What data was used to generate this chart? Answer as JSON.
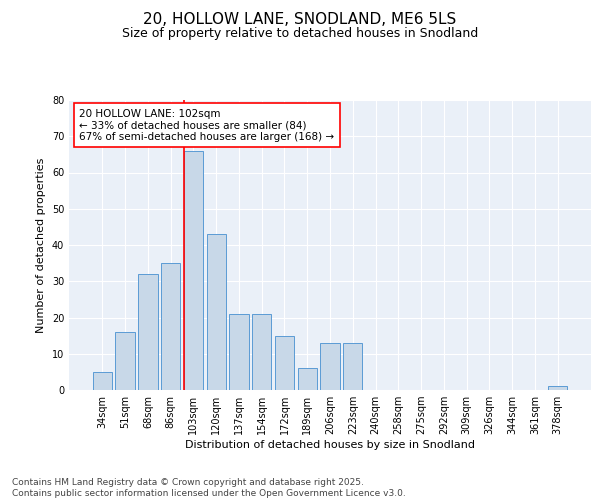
{
  "title1": "20, HOLLOW LANE, SNODLAND, ME6 5LS",
  "title2": "Size of property relative to detached houses in Snodland",
  "xlabel": "Distribution of detached houses by size in Snodland",
  "ylabel": "Number of detached properties",
  "categories": [
    "34sqm",
    "51sqm",
    "68sqm",
    "86sqm",
    "103sqm",
    "120sqm",
    "137sqm",
    "154sqm",
    "172sqm",
    "189sqm",
    "206sqm",
    "223sqm",
    "240sqm",
    "258sqm",
    "275sqm",
    "292sqm",
    "309sqm",
    "326sqm",
    "344sqm",
    "361sqm",
    "378sqm"
  ],
  "values": [
    5,
    16,
    32,
    35,
    66,
    43,
    21,
    21,
    15,
    6,
    13,
    13,
    0,
    0,
    0,
    0,
    0,
    0,
    0,
    0,
    1
  ],
  "bar_color": "#c8d8e8",
  "bar_edge_color": "#5b9bd5",
  "red_line_index": 4,
  "annotation_text": "20 HOLLOW LANE: 102sqm\n← 33% of detached houses are smaller (84)\n67% of semi-detached houses are larger (168) →",
  "annotation_box_color": "white",
  "annotation_box_edge_color": "red",
  "red_line_color": "red",
  "ylim": [
    0,
    80
  ],
  "yticks": [
    0,
    10,
    20,
    30,
    40,
    50,
    60,
    70,
    80
  ],
  "background_color": "#eaf0f8",
  "grid_color": "white",
  "footer_text": "Contains HM Land Registry data © Crown copyright and database right 2025.\nContains public sector information licensed under the Open Government Licence v3.0.",
  "title_fontsize": 11,
  "subtitle_fontsize": 9,
  "axis_label_fontsize": 8,
  "tick_fontsize": 7,
  "annotation_fontsize": 7.5,
  "footer_fontsize": 6.5
}
